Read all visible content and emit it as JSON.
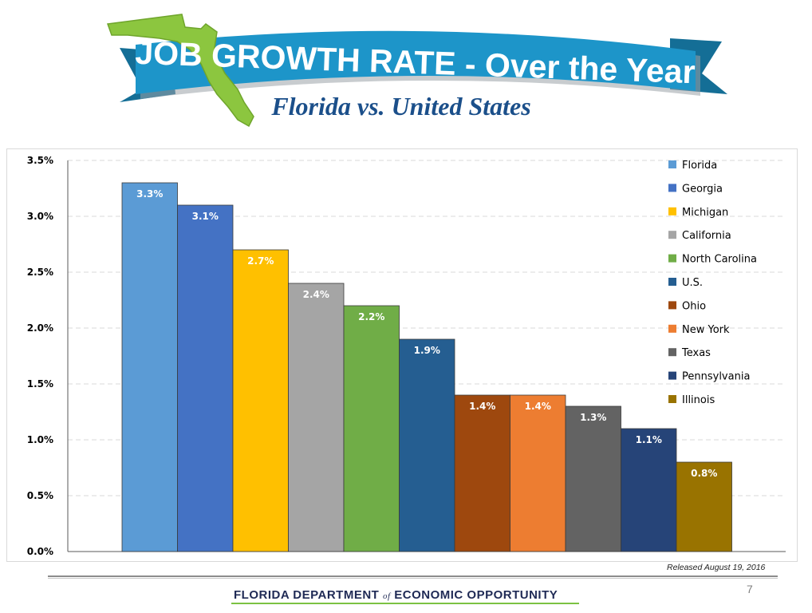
{
  "header": {
    "title": "JOB GROWTH RATE - Over the Year",
    "subtitle": "Florida vs. United States",
    "colors": {
      "banner": "#1d95c9",
      "banner_dark": "#146e96",
      "florida_map": "#8cc63f"
    }
  },
  "chart_data": {
    "type": "bar",
    "categories": [
      "Florida",
      "Georgia",
      "Michigan",
      "California",
      "North Carolina",
      "U.S.",
      "Ohio",
      "New York",
      "Texas",
      "Pennsylvania",
      "Illinois"
    ],
    "values": [
      3.3,
      3.1,
      2.7,
      2.4,
      2.2,
      1.9,
      1.4,
      1.4,
      1.3,
      1.1,
      0.8
    ],
    "value_labels": [
      "3.3%",
      "3.1%",
      "2.7%",
      "2.4%",
      "2.2%",
      "1.9%",
      "1.4%",
      "1.4%",
      "1.3%",
      "1.1%",
      "0.8%"
    ],
    "colors": [
      "#5b9bd5",
      "#4472c4",
      "#ffc000",
      "#a5a5a5",
      "#70ad47",
      "#255e91",
      "#9e480e",
      "#ed7d31",
      "#636363",
      "#264478",
      "#997300"
    ],
    "ylim": [
      0,
      3.5
    ],
    "yticks": [
      0,
      0.5,
      1.0,
      1.5,
      2.0,
      2.5,
      3.0,
      3.5
    ],
    "ytick_labels": [
      "0.0%",
      "0.5%",
      "1.0%",
      "1.5%",
      "2.0%",
      "2.5%",
      "3.0%",
      "3.5%"
    ],
    "grid": true,
    "legend_position": "top-right"
  },
  "footer": {
    "released": "Released August 19, 2016",
    "page_number": "7",
    "dept_name_part1": "FLORIDA DEPARTMENT",
    "dept_name_of": "of",
    "dept_name_part2": "ECONOMIC OPPORTUNITY"
  }
}
